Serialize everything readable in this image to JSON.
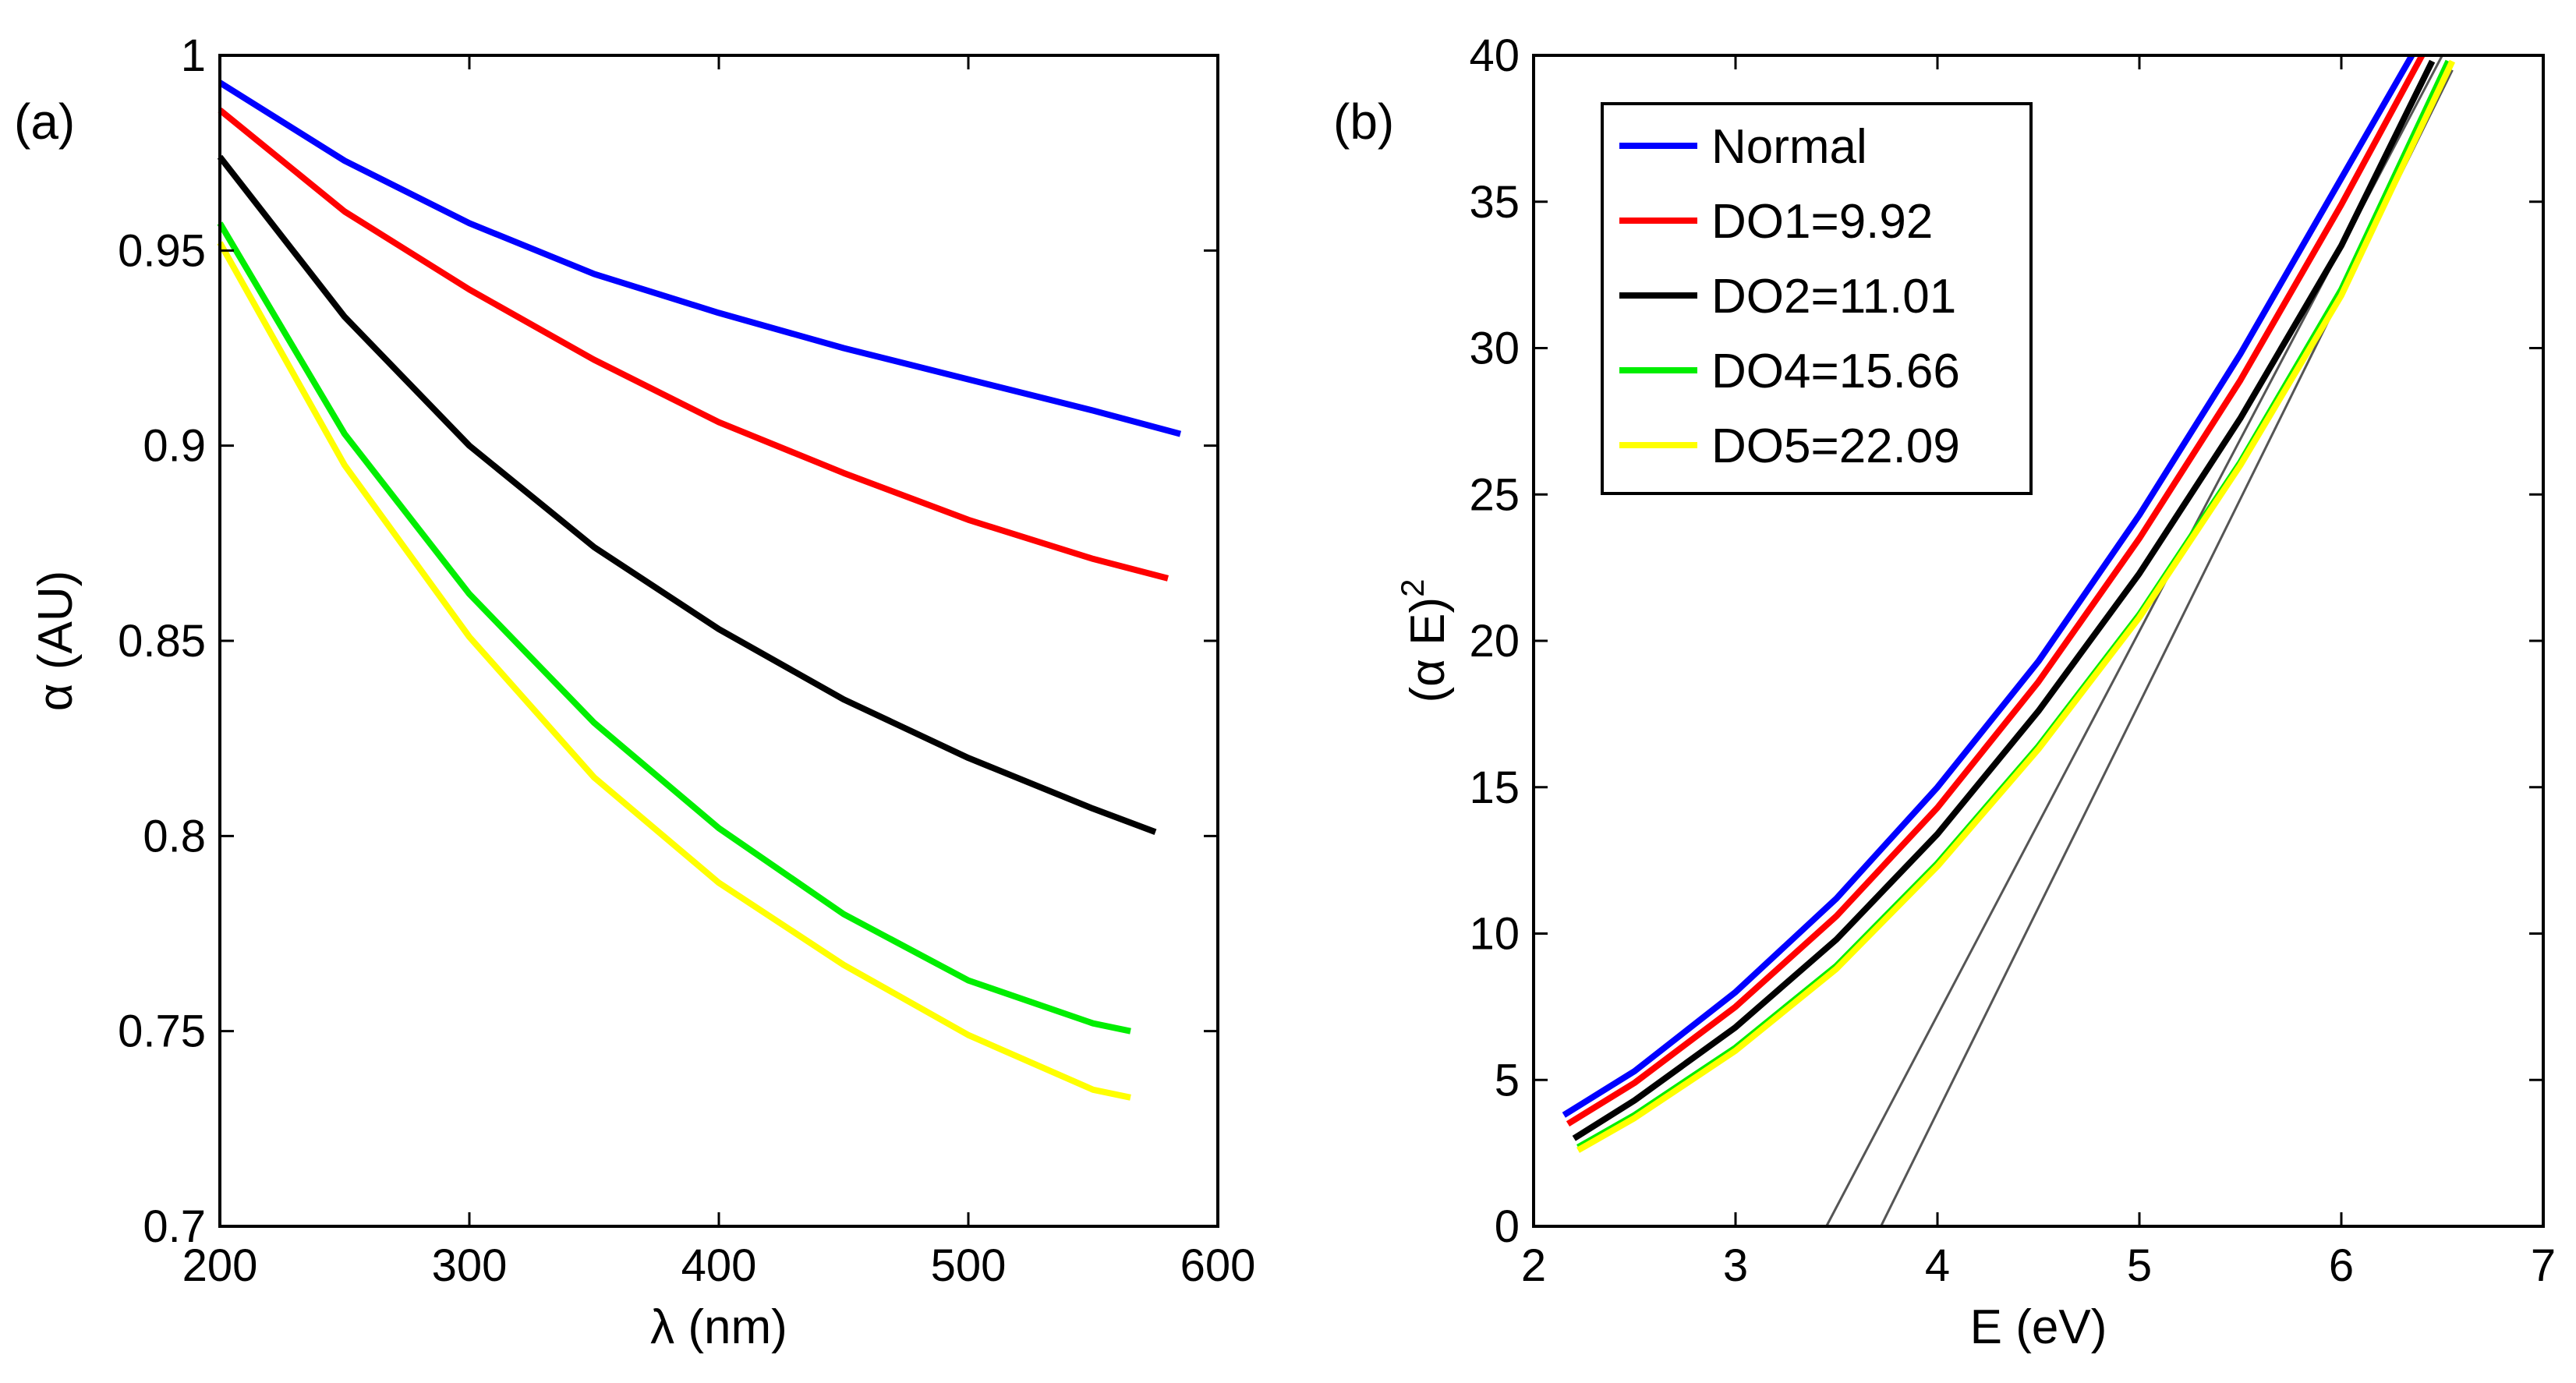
{
  "chart_data": [
    {
      "panel_label": "(a)",
      "type": "line",
      "xlabel": "λ (nm)",
      "ylabel": "α (AU)",
      "xlim": [
        200,
        600
      ],
      "ylim": [
        0.7,
        1.0
      ],
      "xticks": [
        "200",
        "300",
        "400",
        "500",
        "600"
      ],
      "yticks": [
        "0.7",
        "0.75",
        "0.8",
        "0.85",
        "0.9",
        "0.95",
        "1"
      ],
      "grid": false,
      "series": [
        {
          "name": "Normal",
          "color": "#0000ff",
          "x": [
            200,
            250,
            300,
            350,
            400,
            450,
            500,
            550,
            585
          ],
          "y": [
            0.993,
            0.973,
            0.957,
            0.944,
            0.934,
            0.925,
            0.917,
            0.909,
            0.903
          ]
        },
        {
          "name": "DO1=9.92",
          "color": "#ff0000",
          "x": [
            200,
            250,
            300,
            350,
            400,
            450,
            500,
            550,
            580
          ],
          "y": [
            0.986,
            0.96,
            0.94,
            0.922,
            0.906,
            0.893,
            0.881,
            0.871,
            0.866
          ]
        },
        {
          "name": "DO2=11.01",
          "color": "#000000",
          "x": [
            200,
            250,
            300,
            350,
            400,
            450,
            500,
            550,
            575
          ],
          "y": [
            0.974,
            0.933,
            0.9,
            0.874,
            0.853,
            0.835,
            0.82,
            0.807,
            0.801
          ]
        },
        {
          "name": "DO4=15.66",
          "color": "#00ee00",
          "x": [
            200,
            250,
            300,
            350,
            400,
            450,
            500,
            550,
            565
          ],
          "y": [
            0.957,
            0.903,
            0.862,
            0.829,
            0.802,
            0.78,
            0.763,
            0.752,
            0.75
          ]
        },
        {
          "name": "DO5=22.09",
          "color": "#ffff00",
          "x": [
            200,
            250,
            300,
            350,
            400,
            450,
            500,
            550,
            565
          ],
          "y": [
            0.952,
            0.895,
            0.851,
            0.815,
            0.788,
            0.767,
            0.749,
            0.735,
            0.733
          ]
        }
      ]
    },
    {
      "panel_label": "(b)",
      "type": "line",
      "xlabel": "E (eV)",
      "ylabel": "(α E)",
      "ylabel_superscript": "2",
      "xlim": [
        2,
        7
      ],
      "ylim": [
        0,
        40
      ],
      "xticks": [
        "2",
        "3",
        "4",
        "5",
        "6",
        "7"
      ],
      "yticks": [
        "0",
        "5",
        "10",
        "15",
        "20",
        "25",
        "30",
        "35",
        "40"
      ],
      "grid": false,
      "legend_position": "top-left",
      "series": [
        {
          "name": "Normal",
          "color": "#0000ff",
          "x": [
            2.15,
            2.5,
            3.0,
            3.5,
            4.0,
            4.5,
            5.0,
            5.5,
            6.0,
            6.35
          ],
          "y": [
            3.8,
            5.3,
            8.0,
            11.2,
            15.0,
            19.3,
            24.3,
            29.8,
            35.8,
            40.0
          ]
        },
        {
          "name": "DO1=9.92",
          "color": "#ff0000",
          "x": [
            2.17,
            2.5,
            3.0,
            3.5,
            4.0,
            4.5,
            5.0,
            5.5,
            6.0,
            6.4
          ],
          "y": [
            3.5,
            4.9,
            7.5,
            10.6,
            14.3,
            18.6,
            23.5,
            28.9,
            34.9,
            40.0
          ]
        },
        {
          "name": "DO2=11.01",
          "color": "#000000",
          "x": [
            2.2,
            2.5,
            3.0,
            3.5,
            4.0,
            4.5,
            5.0,
            5.5,
            6.0,
            6.45
          ],
          "y": [
            3.0,
            4.3,
            6.8,
            9.8,
            13.4,
            17.6,
            22.3,
            27.6,
            33.5,
            39.8
          ]
        },
        {
          "name": "DO4=15.66",
          "color": "#00ee00",
          "x": [
            2.22,
            2.5,
            3.0,
            3.5,
            4.0,
            4.5,
            5.0,
            5.5,
            6.0,
            6.53
          ],
          "y": [
            2.7,
            3.8,
            6.1,
            8.9,
            12.4,
            16.4,
            20.9,
            26.1,
            32.0,
            39.8
          ]
        },
        {
          "name": "DO5=22.09",
          "color": "#ffff00",
          "x": [
            2.22,
            2.5,
            3.0,
            3.5,
            4.0,
            4.5,
            5.0,
            5.5,
            6.0,
            6.55
          ],
          "y": [
            2.6,
            3.7,
            6.0,
            8.8,
            12.3,
            16.3,
            20.8,
            26.0,
            31.8,
            39.8
          ]
        }
      ],
      "tangent_lines": [
        {
          "color": "#555555",
          "x": [
            3.45,
            6.5
          ],
          "y": [
            0,
            40
          ]
        },
        {
          "color": "#555555",
          "x": [
            3.72,
            6.55
          ],
          "y": [
            0,
            39.5
          ]
        }
      ]
    }
  ]
}
